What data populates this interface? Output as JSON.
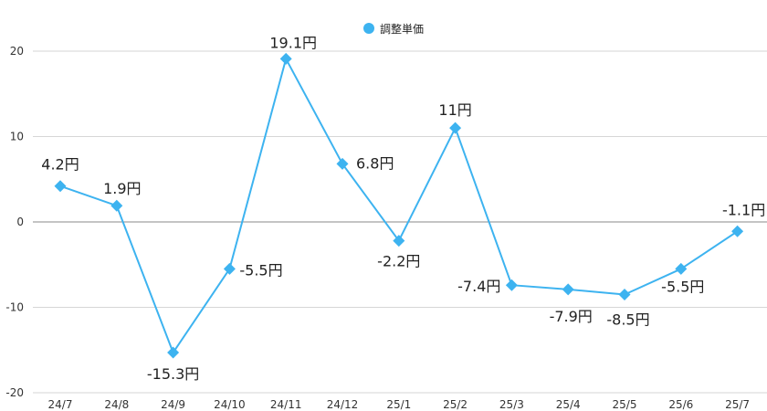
{
  "chart_data": {
    "type": "line",
    "title": "",
    "xlabel": "",
    "ylabel": "",
    "categories": [
      "24/7",
      "24/8",
      "24/9",
      "24/10",
      "24/11",
      "24/12",
      "25/1",
      "25/2",
      "25/3",
      "25/4",
      "25/5",
      "25/6",
      "25/7"
    ],
    "series": [
      {
        "name": "調整単価",
        "values": [
          4.2,
          1.9,
          -15.3,
          -5.5,
          19.1,
          6.8,
          -2.2,
          11,
          -7.4,
          -7.9,
          -8.5,
          -5.5,
          -1.1
        ],
        "data_labels": [
          "4.2円",
          "1.9円",
          "-15.3円",
          "-5.5円",
          "19.1円",
          "6.8円",
          "-2.2円",
          "11円",
          "-7.4円",
          "-7.9円",
          "-8.5円",
          "-5.5円",
          "-1.1円"
        ],
        "color": "#3db3f0",
        "marker": "diamond"
      }
    ],
    "ylim": [
      -20,
      20
    ],
    "yticks": [
      "-20",
      "-10",
      "0",
      "10",
      "20"
    ],
    "grid": true,
    "legend_position": "top-center"
  }
}
